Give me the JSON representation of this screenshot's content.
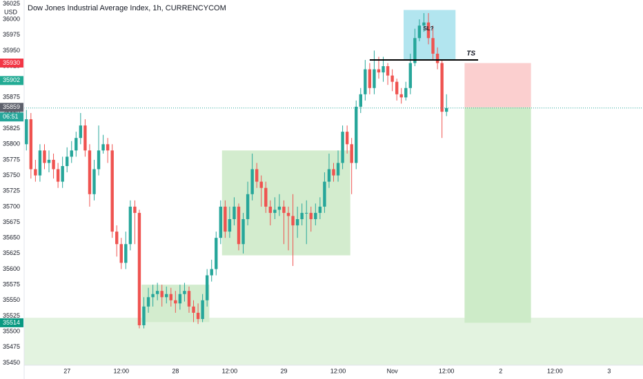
{
  "chart_data": {
    "type": "candlestick",
    "title": "Dow Jones Industrial Average Index, 1h, CURRENCYCOM",
    "currency": "USD",
    "up_color": "#26a69a",
    "down_color": "#ef5350",
    "grid": false,
    "xlim": [
      -0.5,
      136.5
    ],
    "ylim": [
      35446,
      36031
    ],
    "xticks": [
      {
        "value": 9,
        "label": "27"
      },
      {
        "value": 21,
        "label": "12:00"
      },
      {
        "value": 33,
        "label": "28"
      },
      {
        "value": 45,
        "label": "12:00"
      },
      {
        "value": 57,
        "label": "29"
      },
      {
        "value": 69,
        "label": "12:00"
      },
      {
        "value": 81,
        "label": "Nov"
      },
      {
        "value": 93,
        "label": "12:00"
      },
      {
        "value": 105,
        "label": "2"
      },
      {
        "value": 117,
        "label": "12:00"
      },
      {
        "value": 129,
        "label": "3"
      }
    ],
    "yticks": [
      36025,
      36000,
      35975,
      35950,
      35925,
      35900,
      35875,
      35850,
      35825,
      35800,
      35775,
      35750,
      35725,
      35700,
      35675,
      35650,
      35625,
      35600,
      35575,
      35550,
      35525,
      35500,
      35475,
      35450
    ],
    "open": [
      35800,
      35840,
      35760,
      35750,
      35790,
      35770,
      35775,
      35760,
      35740,
      35765,
      35780,
      35790,
      35810,
      35830,
      35790,
      35720,
      35760,
      35790,
      35800,
      35790,
      35660,
      35640,
      35610,
      35640,
      35700,
      35690,
      35510,
      35540,
      35555,
      35560,
      35565,
      35555,
      35560,
      35550,
      35545,
      35560,
      35565,
      35540,
      35530,
      35520,
      35550,
      35590,
      35600,
      35650,
      35700,
      35660,
      35680,
      35700,
      35640,
      35680,
      35720,
      35760,
      35740,
      35730,
      35700,
      35690,
      35695,
      35700,
      35690,
      35685,
      35670,
      35680,
      35690,
      35690,
      35680,
      35690,
      35700,
      35740,
      35760,
      35750,
      35770,
      35820,
      35800,
      35770,
      35860,
      35880,
      35920,
      35890,
      35920,
      35915,
      35925,
      35910,
      35900,
      35880,
      35875,
      35890,
      35930,
      35970,
      35990,
      35995,
      35970,
      35945,
      35930,
      35852
    ],
    "high": [
      35855,
      35850,
      35775,
      35800,
      35800,
      35790,
      35785,
      35770,
      35780,
      35795,
      35805,
      35820,
      35850,
      35840,
      35800,
      35775,
      35830,
      35815,
      35810,
      35800,
      35670,
      35650,
      35660,
      35710,
      35710,
      35695,
      35555,
      35570,
      35575,
      35578,
      35575,
      35572,
      35570,
      35565,
      35575,
      35578,
      35572,
      35550,
      35545,
      35560,
      35600,
      35615,
      35660,
      35710,
      35710,
      35700,
      35715,
      35705,
      35690,
      35740,
      35785,
      35770,
      35750,
      35740,
      35710,
      35715,
      35720,
      35710,
      35700,
      35720,
      35700,
      35705,
      35710,
      35700,
      35705,
      35715,
      35755,
      35785,
      35770,
      35790,
      35830,
      35830,
      35810,
      35870,
      35890,
      35935,
      35930,
      35950,
      35940,
      35940,
      35930,
      35920,
      35905,
      35890,
      35900,
      35945,
      35985,
      36000,
      36010,
      36010,
      35990,
      35955,
      35935,
      35880
    ],
    "low": [
      35790,
      35745,
      35740,
      35740,
      35760,
      35755,
      35745,
      35730,
      35730,
      35755,
      35770,
      35780,
      35800,
      35780,
      35700,
      35710,
      35750,
      35785,
      35770,
      35650,
      35620,
      35600,
      35600,
      35630,
      35640,
      35505,
      35505,
      35530,
      35540,
      35550,
      35540,
      35545,
      35540,
      35530,
      35535,
      35548,
      35530,
      35515,
      35512,
      35515,
      35540,
      35580,
      35590,
      35640,
      35650,
      35650,
      35670,
      35630,
      35625,
      35670,
      35710,
      35730,
      35700,
      35690,
      35670,
      35680,
      35685,
      35640,
      35630,
      35605,
      35650,
      35670,
      35640,
      35660,
      35670,
      35680,
      35690,
      35730,
      35740,
      35740,
      35760,
      35785,
      35720,
      35760,
      35850,
      35870,
      35880,
      35880,
      35905,
      35900,
      35895,
      35885,
      35870,
      35865,
      35870,
      35880,
      35925,
      35965,
      35980,
      35960,
      35935,
      35920,
      35810,
      35845
    ],
    "close": [
      35840,
      35760,
      35750,
      35790,
      35770,
      35775,
      35760,
      35740,
      35765,
      35780,
      35790,
      35810,
      35830,
      35790,
      35720,
      35760,
      35790,
      35800,
      35790,
      35660,
      35640,
      35610,
      35640,
      35700,
      35690,
      35510,
      35540,
      35555,
      35560,
      35565,
      35555,
      35560,
      35550,
      35545,
      35560,
      35565,
      35540,
      35530,
      35520,
      35550,
      35590,
      35600,
      35650,
      35700,
      35660,
      35680,
      35700,
      35640,
      35680,
      35720,
      35760,
      35740,
      35730,
      35700,
      35690,
      35695,
      35700,
      35690,
      35685,
      35670,
      35680,
      35690,
      35690,
      35680,
      35690,
      35700,
      35740,
      35760,
      35750,
      35770,
      35820,
      35800,
      35770,
      35860,
      35880,
      35920,
      35890,
      35920,
      35915,
      35925,
      35910,
      35900,
      35880,
      35875,
      35890,
      35930,
      35970,
      35990,
      35995,
      35970,
      35945,
      35930,
      35852,
      35858
    ],
    "zones": [
      {
        "x0": -0.5,
        "x1": 136.5,
        "y0": 35522,
        "y1": 35446,
        "color": "#e3f3e0"
      },
      {
        "x0": 25.5,
        "x1": 40.5,
        "y0": 35575,
        "y1": 35515,
        "color": "#d3ecce"
      },
      {
        "x0": 43.3,
        "x1": 71.7,
        "y0": 35790,
        "y1": 35622,
        "color": "#d3ecce"
      },
      {
        "x0": 83.5,
        "x1": 95,
        "y0": 36015,
        "y1": 35935,
        "color": "#b2e5ef"
      },
      {
        "x0": 97,
        "x1": 111.7,
        "y0": 35930,
        "y1": 35859,
        "color": "#fbcfcf"
      },
      {
        "x0": 97,
        "x1": 111.7,
        "y0": 35859,
        "y1": 35514,
        "color": "#cdebc8"
      }
    ],
    "trend_line": {
      "label": "TS",
      "price": 35935,
      "x0": 76,
      "x1": 100
    },
    "note": {
      "label": "SL?",
      "x": 89,
      "price": 35985
    },
    "last_price": 35858,
    "price_labels": [
      {
        "value": 35930,
        "color": "#f23645"
      },
      {
        "value": 35902,
        "color": "#22ab94"
      },
      {
        "value": 35859,
        "color": "#5d606b"
      },
      {
        "value": 35514,
        "color": "#089981"
      }
    ],
    "countdown": "06:51",
    "countdown_color": "#26a69a"
  }
}
